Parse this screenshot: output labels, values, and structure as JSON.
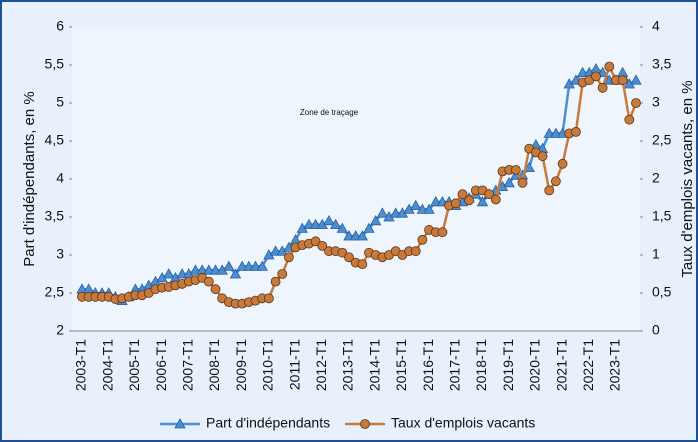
{
  "chart_data": {
    "type": "line",
    "annotation": "Zone de traçage",
    "y_label": "Part d'indépendants, en %",
    "y2_label": "Taux d'emplois vacants, en %",
    "categories": [
      "2003-T1",
      null,
      null,
      null,
      "2004-T1",
      null,
      null,
      null,
      "2005-T1",
      null,
      null,
      null,
      "2006-T1",
      null,
      null,
      null,
      "2007-T1",
      null,
      null,
      null,
      "2008-T1",
      null,
      null,
      null,
      "2009-T1",
      null,
      null,
      null,
      "2010-T1",
      null,
      null,
      null,
      "2011-T1",
      null,
      null,
      null,
      "2012-T1",
      null,
      null,
      null,
      "2013-T1",
      null,
      null,
      null,
      "2014-T1",
      null,
      null,
      null,
      "2015-T1",
      null,
      null,
      null,
      "2016-T1",
      null,
      null,
      null,
      "2017-T1",
      null,
      null,
      null,
      "2018-T1",
      null,
      null,
      null,
      "2019-T1",
      null,
      null,
      null,
      "2020-T1",
      null,
      null,
      null,
      "2021-T1",
      null,
      null,
      null,
      "2022-T1",
      null,
      null,
      null,
      "2023-T1",
      null,
      null,
      null
    ],
    "series": [
      {
        "name": "Part d'indépendants",
        "color": "#4a8fd6",
        "marker": "triangle",
        "values": [
          2.55,
          2.55,
          2.5,
          2.5,
          2.5,
          2.45,
          2.4,
          2.45,
          2.55,
          2.55,
          2.6,
          2.65,
          2.7,
          2.75,
          2.7,
          2.75,
          2.75,
          2.8,
          2.8,
          2.8,
          2.8,
          2.8,
          2.85,
          2.75,
          2.85,
          2.85,
          2.85,
          2.85,
          3.0,
          3.05,
          3.05,
          3.1,
          3.2,
          3.35,
          3.4,
          3.4,
          3.4,
          3.45,
          3.4,
          3.35,
          3.25,
          3.25,
          3.25,
          3.35,
          3.45,
          3.55,
          3.5,
          3.55,
          3.55,
          3.6,
          3.65,
          3.6,
          3.6,
          3.7,
          3.7,
          3.7,
          3.65,
          3.7,
          3.75,
          3.8,
          3.7,
          3.8,
          3.85,
          3.9,
          3.95,
          4.05,
          4.05,
          4.15,
          4.45,
          4.4,
          4.6,
          4.6,
          4.6,
          5.25,
          5.3,
          5.4,
          5.4,
          5.45,
          5.4,
          5.3,
          5.3,
          5.4,
          5.25,
          5.3
        ]
      },
      {
        "name": "Taux d'emplois vacants",
        "color": "#c87a3c",
        "marker": "circle",
        "axis": "y2",
        "values": [
          0.45,
          0.45,
          0.45,
          0.45,
          0.45,
          0.42,
          0.43,
          0.45,
          0.47,
          0.47,
          0.5,
          0.55,
          0.57,
          0.58,
          0.6,
          0.62,
          0.65,
          0.67,
          0.7,
          0.65,
          0.55,
          0.43,
          0.38,
          0.36,
          0.36,
          0.38,
          0.4,
          0.43,
          0.43,
          0.65,
          0.75,
          0.97,
          1.1,
          1.13,
          1.15,
          1.18,
          1.12,
          1.05,
          1.05,
          1.03,
          0.97,
          0.9,
          0.88,
          1.03,
          1.0,
          0.97,
          1.0,
          1.05,
          1.0,
          1.05,
          1.05,
          1.2,
          1.33,
          1.3,
          1.3,
          1.65,
          1.68,
          1.8,
          1.72,
          1.85,
          1.85,
          1.8,
          1.73,
          2.1,
          2.12,
          2.12,
          1.95,
          2.4,
          2.35,
          2.3,
          1.85,
          1.97,
          2.2,
          2.6,
          2.62,
          3.27,
          3.3,
          3.35,
          3.2,
          3.48,
          3.3,
          3.3,
          2.78,
          3.0
        ]
      }
    ],
    "ylim": [
      2,
      6
    ],
    "yticks": [
      2,
      {
        "value": 2.5,
        "label": "2,5"
      },
      3,
      {
        "value": 3.5,
        "label": "3,5"
      },
      4,
      {
        "value": 4.5,
        "label": "4,5"
      },
      5,
      {
        "value": 5.5,
        "label": "5,5"
      },
      6
    ],
    "y2lim": [
      0,
      4
    ],
    "y2ticks": [
      0,
      {
        "value": 0.5,
        "label": "0,5"
      },
      1,
      {
        "value": 1.5,
        "label": "1,5"
      },
      2,
      {
        "value": 2.5,
        "label": "2,5"
      },
      3,
      {
        "value": 3.5,
        "label": "3,5"
      },
      4
    ],
    "grid": false,
    "legend": "bottom"
  }
}
